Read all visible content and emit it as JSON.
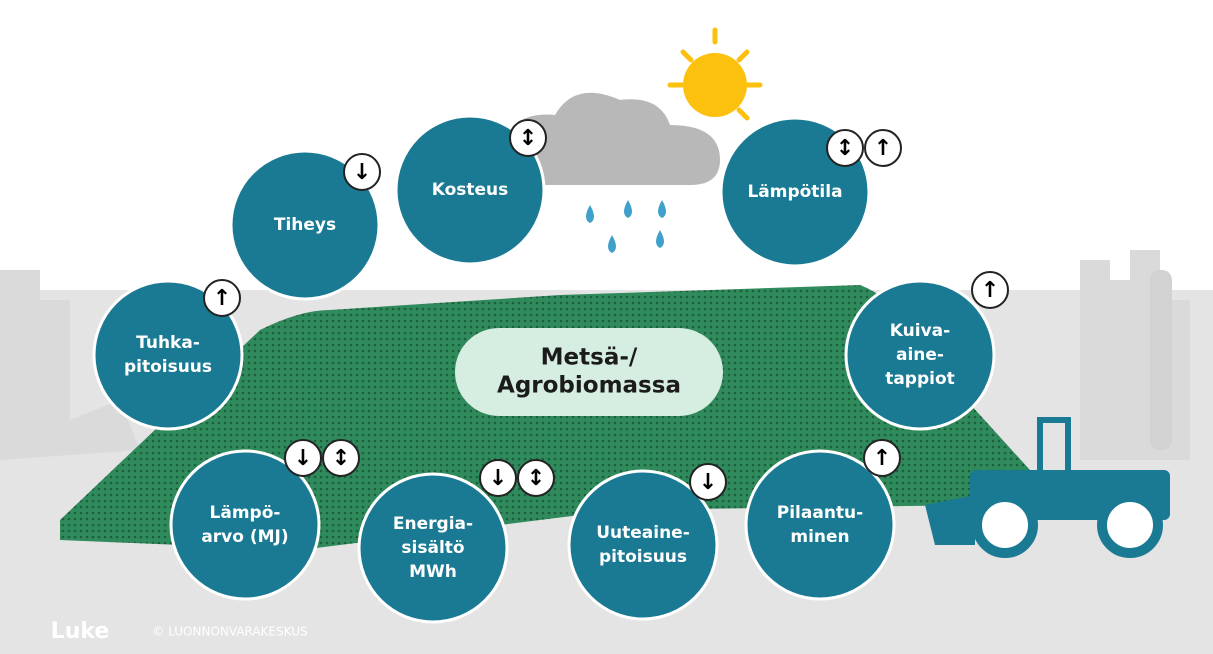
{
  "center": {
    "lines": [
      "Metsä-/",
      "Agrobiomassa"
    ]
  },
  "nodes": [
    {
      "lines": [
        "Tiheys"
      ],
      "arrows": [
        "↓"
      ]
    },
    {
      "lines": [
        "Kosteus"
      ],
      "arrows": [
        "↕"
      ]
    },
    {
      "lines": [
        "Lämpötila"
      ],
      "arrows": [
        "↕",
        "↑"
      ]
    },
    {
      "lines": [
        "Tuhka-",
        "pitoisuus"
      ],
      "arrows": [
        "↑"
      ]
    },
    {
      "lines": [
        "Kuiva-",
        "aine-",
        "tappiot"
      ],
      "arrows": [
        "↑"
      ]
    },
    {
      "lines": [
        "Lämpö-",
        "arvo (MJ)"
      ],
      "arrows": [
        "↓",
        "↕"
      ]
    },
    {
      "lines": [
        "Energia-",
        "sisältö",
        "MWh"
      ],
      "arrows": [
        "↓",
        "↕"
      ]
    },
    {
      "lines": [
        "Uuteaine-",
        "pitoisuus"
      ],
      "arrows": [
        "↓"
      ]
    },
    {
      "lines": [
        "Pilaantu-",
        "minen"
      ],
      "arrows": [
        "↑"
      ]
    }
  ],
  "footer": {
    "logo": "Luke",
    "copyright": "© LUONNONVARAKESKUS"
  }
}
